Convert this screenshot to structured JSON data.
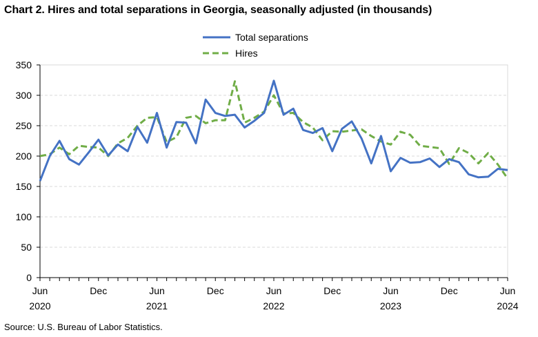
{
  "title": "Chart 2. Hires and total separations in Georgia, seasonally adjusted (in thousands)",
  "source": "Source: U.S. Bureau of Labor Statistics.",
  "chart_data": {
    "type": "line",
    "title": "Chart 2. Hires and total separations in Georgia, seasonally adjusted (in thousands)",
    "xlabel": "",
    "ylabel": "",
    "ylim": [
      0,
      350
    ],
    "yticks": [
      0,
      50,
      100,
      150,
      200,
      250,
      300,
      350
    ],
    "grid": true,
    "legend": "top-center",
    "x_start": "2020-06",
    "x_end": "2024-06",
    "xtick_labels": [
      {
        "month": "Jun",
        "year": "2020"
      },
      {
        "month": "Dec",
        "year": ""
      },
      {
        "month": "Jun",
        "year": "2021"
      },
      {
        "month": "Dec",
        "year": ""
      },
      {
        "month": "Jun",
        "year": "2022"
      },
      {
        "month": "Dec",
        "year": ""
      },
      {
        "month": "Jun",
        "year": "2023"
      },
      {
        "month": "Dec",
        "year": ""
      },
      {
        "month": "Jun",
        "year": "2024"
      }
    ],
    "x": [
      "2020-06",
      "2020-07",
      "2020-08",
      "2020-09",
      "2020-10",
      "2020-11",
      "2020-12",
      "2021-01",
      "2021-02",
      "2021-03",
      "2021-04",
      "2021-05",
      "2021-06",
      "2021-07",
      "2021-08",
      "2021-09",
      "2021-10",
      "2021-11",
      "2021-12",
      "2022-01",
      "2022-02",
      "2022-03",
      "2022-04",
      "2022-05",
      "2022-06",
      "2022-07",
      "2022-08",
      "2022-09",
      "2022-10",
      "2022-11",
      "2022-12",
      "2023-01",
      "2023-02",
      "2023-03",
      "2023-04",
      "2023-05",
      "2023-06",
      "2023-07",
      "2023-08",
      "2023-09",
      "2023-10",
      "2023-11",
      "2023-12",
      "2024-01",
      "2024-02",
      "2024-03",
      "2024-04",
      "2024-05",
      "2024-06"
    ],
    "series": [
      {
        "name": "Total separations",
        "color": "#4472C4",
        "style": "solid",
        "values": [
          159,
          200,
          225,
          195,
          186,
          206,
          227,
          201,
          219,
          208,
          248,
          222,
          271,
          214,
          256,
          255,
          221,
          293,
          271,
          266,
          268,
          247,
          258,
          271,
          324,
          268,
          278,
          243,
          238,
          246,
          208,
          245,
          257,
          229,
          188,
          233,
          175,
          197,
          189,
          190,
          196,
          182,
          195,
          190,
          170,
          165,
          166,
          179,
          177
        ]
      },
      {
        "name": "Hires",
        "color": "#70AD47",
        "style": "dashed",
        "values": [
          200,
          203,
          214,
          203,
          217,
          215,
          214,
          200,
          221,
          230,
          250,
          263,
          264,
          223,
          231,
          263,
          266,
          254,
          259,
          259,
          323,
          255,
          263,
          273,
          300,
          270,
          271,
          256,
          247,
          226,
          241,
          240,
          242,
          244,
          233,
          224,
          219,
          240,
          235,
          217,
          215,
          213,
          187,
          213,
          205,
          188,
          205,
          186,
          163
        ]
      }
    ]
  }
}
